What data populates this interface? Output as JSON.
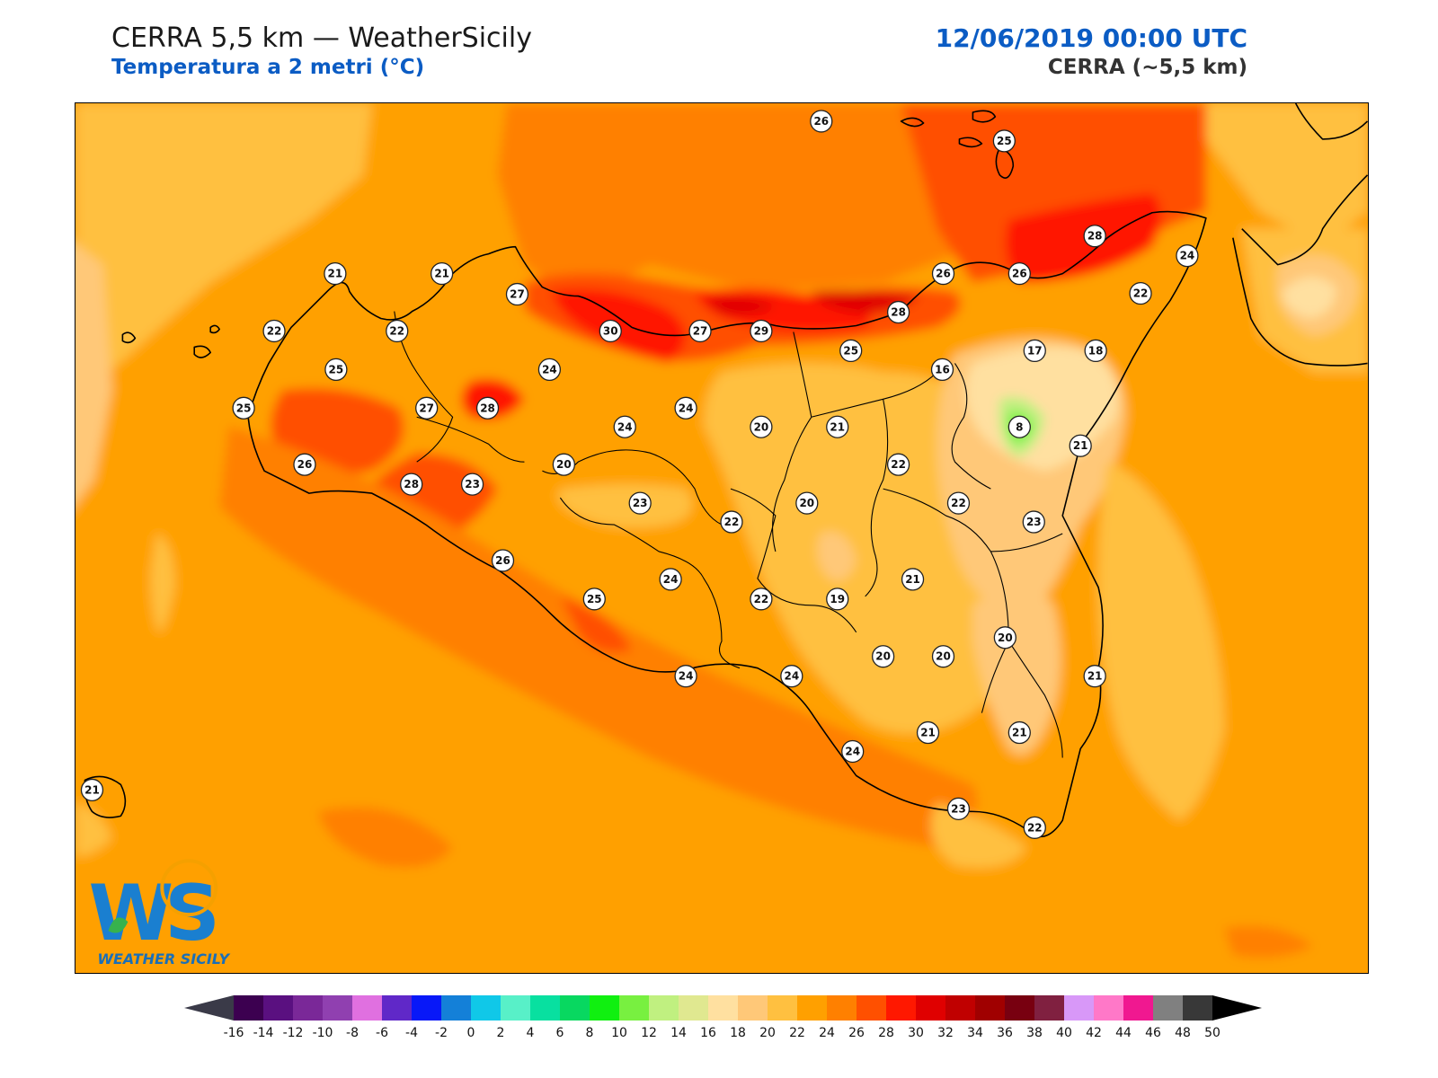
{
  "header": {
    "title": "CERRA 5,5 km — WeatherSicily",
    "subtitle": "Temperatura a 2 metri (°C)",
    "datetime": "12/06/2019 00:00 UTC",
    "model": "CERRA (~5,5 km)"
  },
  "logo": {
    "text": "WEATHER SICILY",
    "mark": "WS"
  },
  "colorbar": {
    "ticks": [
      "-16",
      "-14",
      "-12",
      "-10",
      "-8",
      "-6",
      "-4",
      "-2",
      "0",
      "2",
      "4",
      "6",
      "8",
      "10",
      "12",
      "14",
      "16",
      "18",
      "20",
      "22",
      "24",
      "26",
      "28",
      "30",
      "32",
      "34",
      "36",
      "38",
      "40",
      "42",
      "44",
      "46",
      "48",
      "50"
    ],
    "colors": [
      "#3c0050",
      "#5a1080",
      "#7a2898",
      "#9040b0",
      "#e070e0",
      "#6028c8",
      "#0818f8",
      "#1480d8",
      "#10c8e8",
      "#58f0c8",
      "#08e0a0",
      "#08d860",
      "#10f010",
      "#78f040",
      "#c0f080",
      "#e0e890",
      "#ffe0a0",
      "#ffc878",
      "#ffc040",
      "#ffa000",
      "#ff8000",
      "#ff5000",
      "#ff1800",
      "#e00000",
      "#c00000",
      "#a00000",
      "#780010",
      "#802040",
      "#d898f8",
      "#ff78c8",
      "#f01890",
      "#808080",
      "#383838"
    ]
  },
  "stations": [
    {
      "value": "26"
    },
    {
      "value": "25"
    },
    {
      "value": "21"
    },
    {
      "value": "21"
    },
    {
      "value": "27"
    },
    {
      "value": "22"
    },
    {
      "value": "22"
    },
    {
      "value": "30"
    },
    {
      "value": "27"
    },
    {
      "value": "29"
    },
    {
      "value": "28"
    },
    {
      "value": "26"
    },
    {
      "value": "26"
    },
    {
      "value": "28"
    },
    {
      "value": "24"
    },
    {
      "value": "22"
    },
    {
      "value": "25"
    },
    {
      "value": "24"
    },
    {
      "value": "25"
    },
    {
      "value": "17"
    },
    {
      "value": "18"
    },
    {
      "value": "16"
    },
    {
      "value": "25"
    },
    {
      "value": "27"
    },
    {
      "value": "28"
    },
    {
      "value": "24"
    },
    {
      "value": "24"
    },
    {
      "value": "20"
    },
    {
      "value": "21"
    },
    {
      "value": "8"
    },
    {
      "value": "21"
    },
    {
      "value": "26"
    },
    {
      "value": "20"
    },
    {
      "value": "22"
    },
    {
      "value": "28"
    },
    {
      "value": "23"
    },
    {
      "value": "23"
    },
    {
      "value": "22"
    },
    {
      "value": "20"
    },
    {
      "value": "22"
    },
    {
      "value": "23"
    },
    {
      "value": "26"
    },
    {
      "value": "24"
    },
    {
      "value": "21"
    },
    {
      "value": "25"
    },
    {
      "value": "22"
    },
    {
      "value": "19"
    },
    {
      "value": "20"
    },
    {
      "value": "20"
    },
    {
      "value": "20"
    },
    {
      "value": "24"
    },
    {
      "value": "24"
    },
    {
      "value": "21"
    },
    {
      "value": "21"
    },
    {
      "value": "21"
    },
    {
      "value": "24"
    },
    {
      "value": "21"
    },
    {
      "value": "23"
    },
    {
      "value": "22"
    }
  ]
}
